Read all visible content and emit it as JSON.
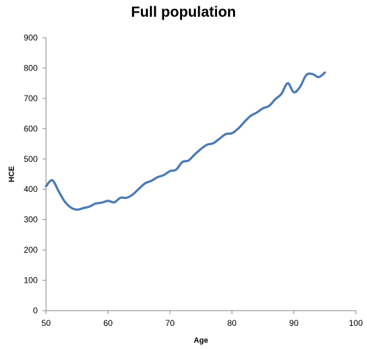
{
  "chart_data": {
    "type": "line",
    "title": "Full population",
    "xlabel": "Age",
    "ylabel": "HCE",
    "xlim": [
      50,
      100
    ],
    "ylim": [
      0,
      900
    ],
    "xticks": [
      50,
      60,
      70,
      80,
      90,
      100
    ],
    "yticks": [
      0,
      100,
      200,
      300,
      400,
      500,
      600,
      700,
      800,
      900
    ],
    "grid": false,
    "legend": "none",
    "series": [
      {
        "color": "#4a7ab5",
        "x": [
          50,
          51,
          52,
          53,
          54,
          55,
          56,
          57,
          58,
          59,
          60,
          61,
          62,
          63,
          64,
          65,
          66,
          67,
          68,
          69,
          70,
          71,
          72,
          73,
          74,
          75,
          76,
          77,
          78,
          79,
          80,
          81,
          82,
          83,
          84,
          85,
          86,
          87,
          88,
          89,
          90,
          91,
          92,
          93,
          94,
          95
        ],
        "y": [
          410,
          430,
          395,
          360,
          340,
          333,
          338,
          343,
          353,
          356,
          362,
          357,
          372,
          372,
          383,
          402,
          420,
          428,
          440,
          447,
          460,
          465,
          490,
          495,
          515,
          533,
          547,
          552,
          567,
          582,
          585,
          600,
          622,
          642,
          653,
          667,
          675,
          697,
          715,
          750,
          720,
          738,
          777,
          780,
          770,
          785
        ]
      }
    ]
  }
}
